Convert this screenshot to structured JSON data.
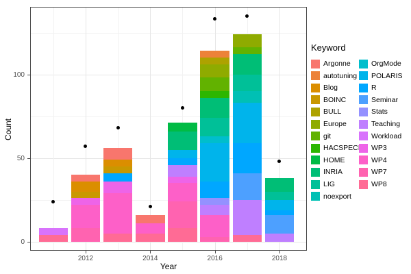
{
  "legend": {
    "title": "Keyword",
    "columns": [
      [
        "Argonne",
        "autotuning",
        "Blog",
        "BOINC",
        "BULL",
        "Europe",
        "git",
        "HACSPECIS",
        "HOME",
        "INRIA",
        "LIG",
        "noexport"
      ],
      [
        "OrgMode",
        "POLARIS",
        "R",
        "Seminar",
        "Stats",
        "Teaching",
        "Workload",
        "WP3",
        "WP4",
        "WP7",
        "WP8"
      ]
    ]
  },
  "chart_data": {
    "type": "bar",
    "subtype": "stacked-with-points",
    "title": "",
    "xlabel": "Year",
    "ylabel": "Count",
    "x_ticks": [
      2012,
      2014,
      2016,
      2018
    ],
    "x_minor": [
      2011,
      2013,
      2015,
      2017
    ],
    "y_ticks": [
      0,
      50,
      100
    ],
    "y_minor": [
      25,
      75,
      125
    ],
    "ylim": [
      -9,
      141
    ],
    "grid": true,
    "legend_position": "right",
    "stack_note": "first keyword in legend order renders at top of stack",
    "keywords": [
      "Argonne",
      "autotuning",
      "Blog",
      "BOINC",
      "BULL",
      "Europe",
      "git",
      "HACSPECIS",
      "HOME",
      "INRIA",
      "LIG",
      "noexport",
      "OrgMode",
      "POLARIS",
      "R",
      "Seminar",
      "Stats",
      "Teaching",
      "Workload",
      "WP3",
      "WP4",
      "WP7",
      "WP8"
    ],
    "colors": {
      "Argonne": "#F8766D",
      "autotuning": "#EC8239",
      "Blog": "#DB8E00",
      "BOINC": "#C99800",
      "BULL": "#AEA200",
      "Europe": "#8FAB00",
      "git": "#62B200",
      "HACSPECIS": "#2CB600",
      "HOME": "#00BB45",
      "INRIA": "#00BE76",
      "LIG": "#00C098",
      "noexport": "#00C0B4",
      "OrgMode": "#00BECC",
      "POLARIS": "#00B4EB",
      "R": "#00A7FF",
      "Seminar": "#4DA0FF",
      "Stats": "#9491FF",
      "Teaching": "#BF7FFF",
      "Workload": "#D873FC",
      "WP3": "#EE64E8",
      "WP4": "#FD60C8",
      "WP7": "#FF63B0",
      "WP8": "#FF6B95"
    },
    "bars": [
      {
        "year": 2011,
        "total": 8,
        "segments": {
          "Workload": 4,
          "WP8": 4
        }
      },
      {
        "year": 2012,
        "total": 40,
        "segments": {
          "Argonne": 4,
          "Blog": 6,
          "BOINC": 4,
          "WP3": 4,
          "WP4": 14,
          "WP7": 8
        }
      },
      {
        "year": 2013,
        "total": 56,
        "segments": {
          "Argonne": 7,
          "Blog": 4,
          "BOINC": 4,
          "R": 5,
          "WP3": 7,
          "WP4": 24,
          "WP8": 5
        }
      },
      {
        "year": 2014,
        "total": 16,
        "segments": {
          "Argonne": 5,
          "WP4": 6,
          "WP8": 5
        }
      },
      {
        "year": 2015,
        "total": 71,
        "segments": {
          "HOME": 5,
          "INRIA": 11,
          "POLARIS": 5,
          "R": 4,
          "Teaching": 7,
          "WP3": 4,
          "WP4": 11,
          "WP7": 16,
          "WP8": 8
        }
      },
      {
        "year": 2016,
        "total": 114,
        "segments": {
          "autotuning": 4,
          "BULL": 4,
          "Europe": 8,
          "git": 8,
          "HACSPECIS": 4,
          "INRIA": 12,
          "LIG": 11,
          "OrgMode": 4,
          "POLARIS": 23,
          "R": 10,
          "Stats": 4,
          "Teaching": 6,
          "WP4": 13,
          "WP7": 3
        }
      },
      {
        "year": 2017,
        "total": 124,
        "segments": {
          "Europe": 8,
          "git": 4,
          "INRIA": 12,
          "LIG": 10,
          "noexport": 7,
          "POLARIS": 24,
          "R": 18,
          "Seminar": 16,
          "Teaching": 21,
          "WP8": 4
        }
      },
      {
        "year": 2018,
        "total": 38,
        "segments": {
          "INRIA": 8,
          "LIG": 5,
          "POLARIS": 6,
          "R": 3,
          "Seminar": 11,
          "Teaching": 5
        }
      }
    ],
    "points": [
      {
        "year": 2011,
        "value": 24
      },
      {
        "year": 2012,
        "value": 57
      },
      {
        "year": 2013,
        "value": 68
      },
      {
        "year": 2014,
        "value": 21
      },
      {
        "year": 2015,
        "value": 80
      },
      {
        "year": 2016,
        "value": 133
      },
      {
        "year": 2017,
        "value": 135
      },
      {
        "year": 2018,
        "value": 48
      }
    ]
  }
}
